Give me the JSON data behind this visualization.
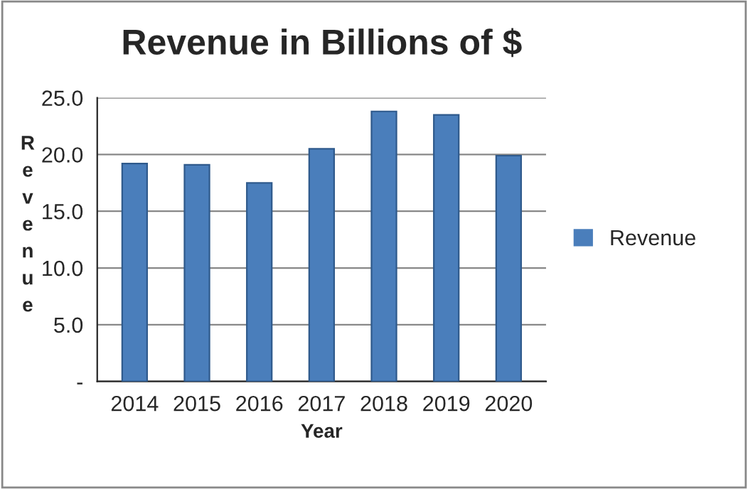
{
  "chart_data": {
    "type": "bar",
    "title": "Revenue in Billions of $",
    "xlabel": "Year",
    "ylabel": "Revenue",
    "categories": [
      "2014",
      "2015",
      "2016",
      "2017",
      "2018",
      "2019",
      "2020"
    ],
    "series": [
      {
        "name": "Revenue",
        "color": "#4a7ebb",
        "values": [
          19.2,
          19.1,
          17.5,
          20.5,
          23.8,
          23.5,
          19.9
        ]
      }
    ],
    "ylim": [
      0,
      25
    ],
    "yticks": [
      {
        "value": 0,
        "label": "-"
      },
      {
        "value": 5,
        "label": "5.0"
      },
      {
        "value": 10,
        "label": "10.0"
      },
      {
        "value": 15,
        "label": "15.0"
      },
      {
        "value": 20,
        "label": "20.0"
      },
      {
        "value": 25,
        "label": "25.0"
      }
    ],
    "grid": "y",
    "legend": "right"
  }
}
